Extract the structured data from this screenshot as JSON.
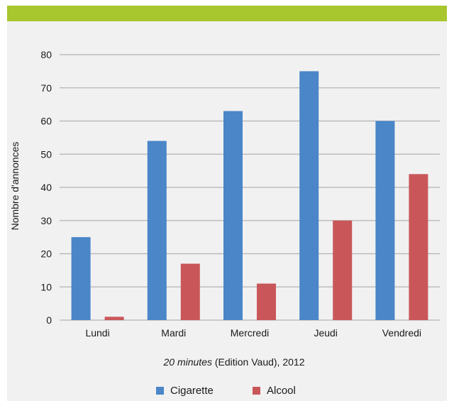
{
  "chart_data": {
    "type": "bar",
    "categories": [
      "Lundi",
      "Mardi",
      "Mercredi",
      "Jeudi",
      "Vendredi"
    ],
    "series": [
      {
        "name": "Cigarette",
        "values": [
          25,
          54,
          63,
          75,
          60
        ],
        "color": "#4a86c8"
      },
      {
        "name": "Alcool",
        "values": [
          1,
          17,
          11,
          30,
          44
        ],
        "color": "#c9575a"
      }
    ],
    "ylabel": "Nombre d'annonces",
    "ylim": [
      0,
      80
    ],
    "yticks": [
      0,
      10,
      20,
      30,
      40,
      50,
      60,
      70,
      80
    ],
    "grid": true,
    "legend_position": "bottom"
  },
  "caption": {
    "source_italic": "20 minutes",
    "source_rest": " (Edition Vaud), 2012"
  },
  "colors": {
    "accent_band": "#a8c62d",
    "panel_background": "#f1f1f1",
    "gridline": "#b3b3b3"
  }
}
